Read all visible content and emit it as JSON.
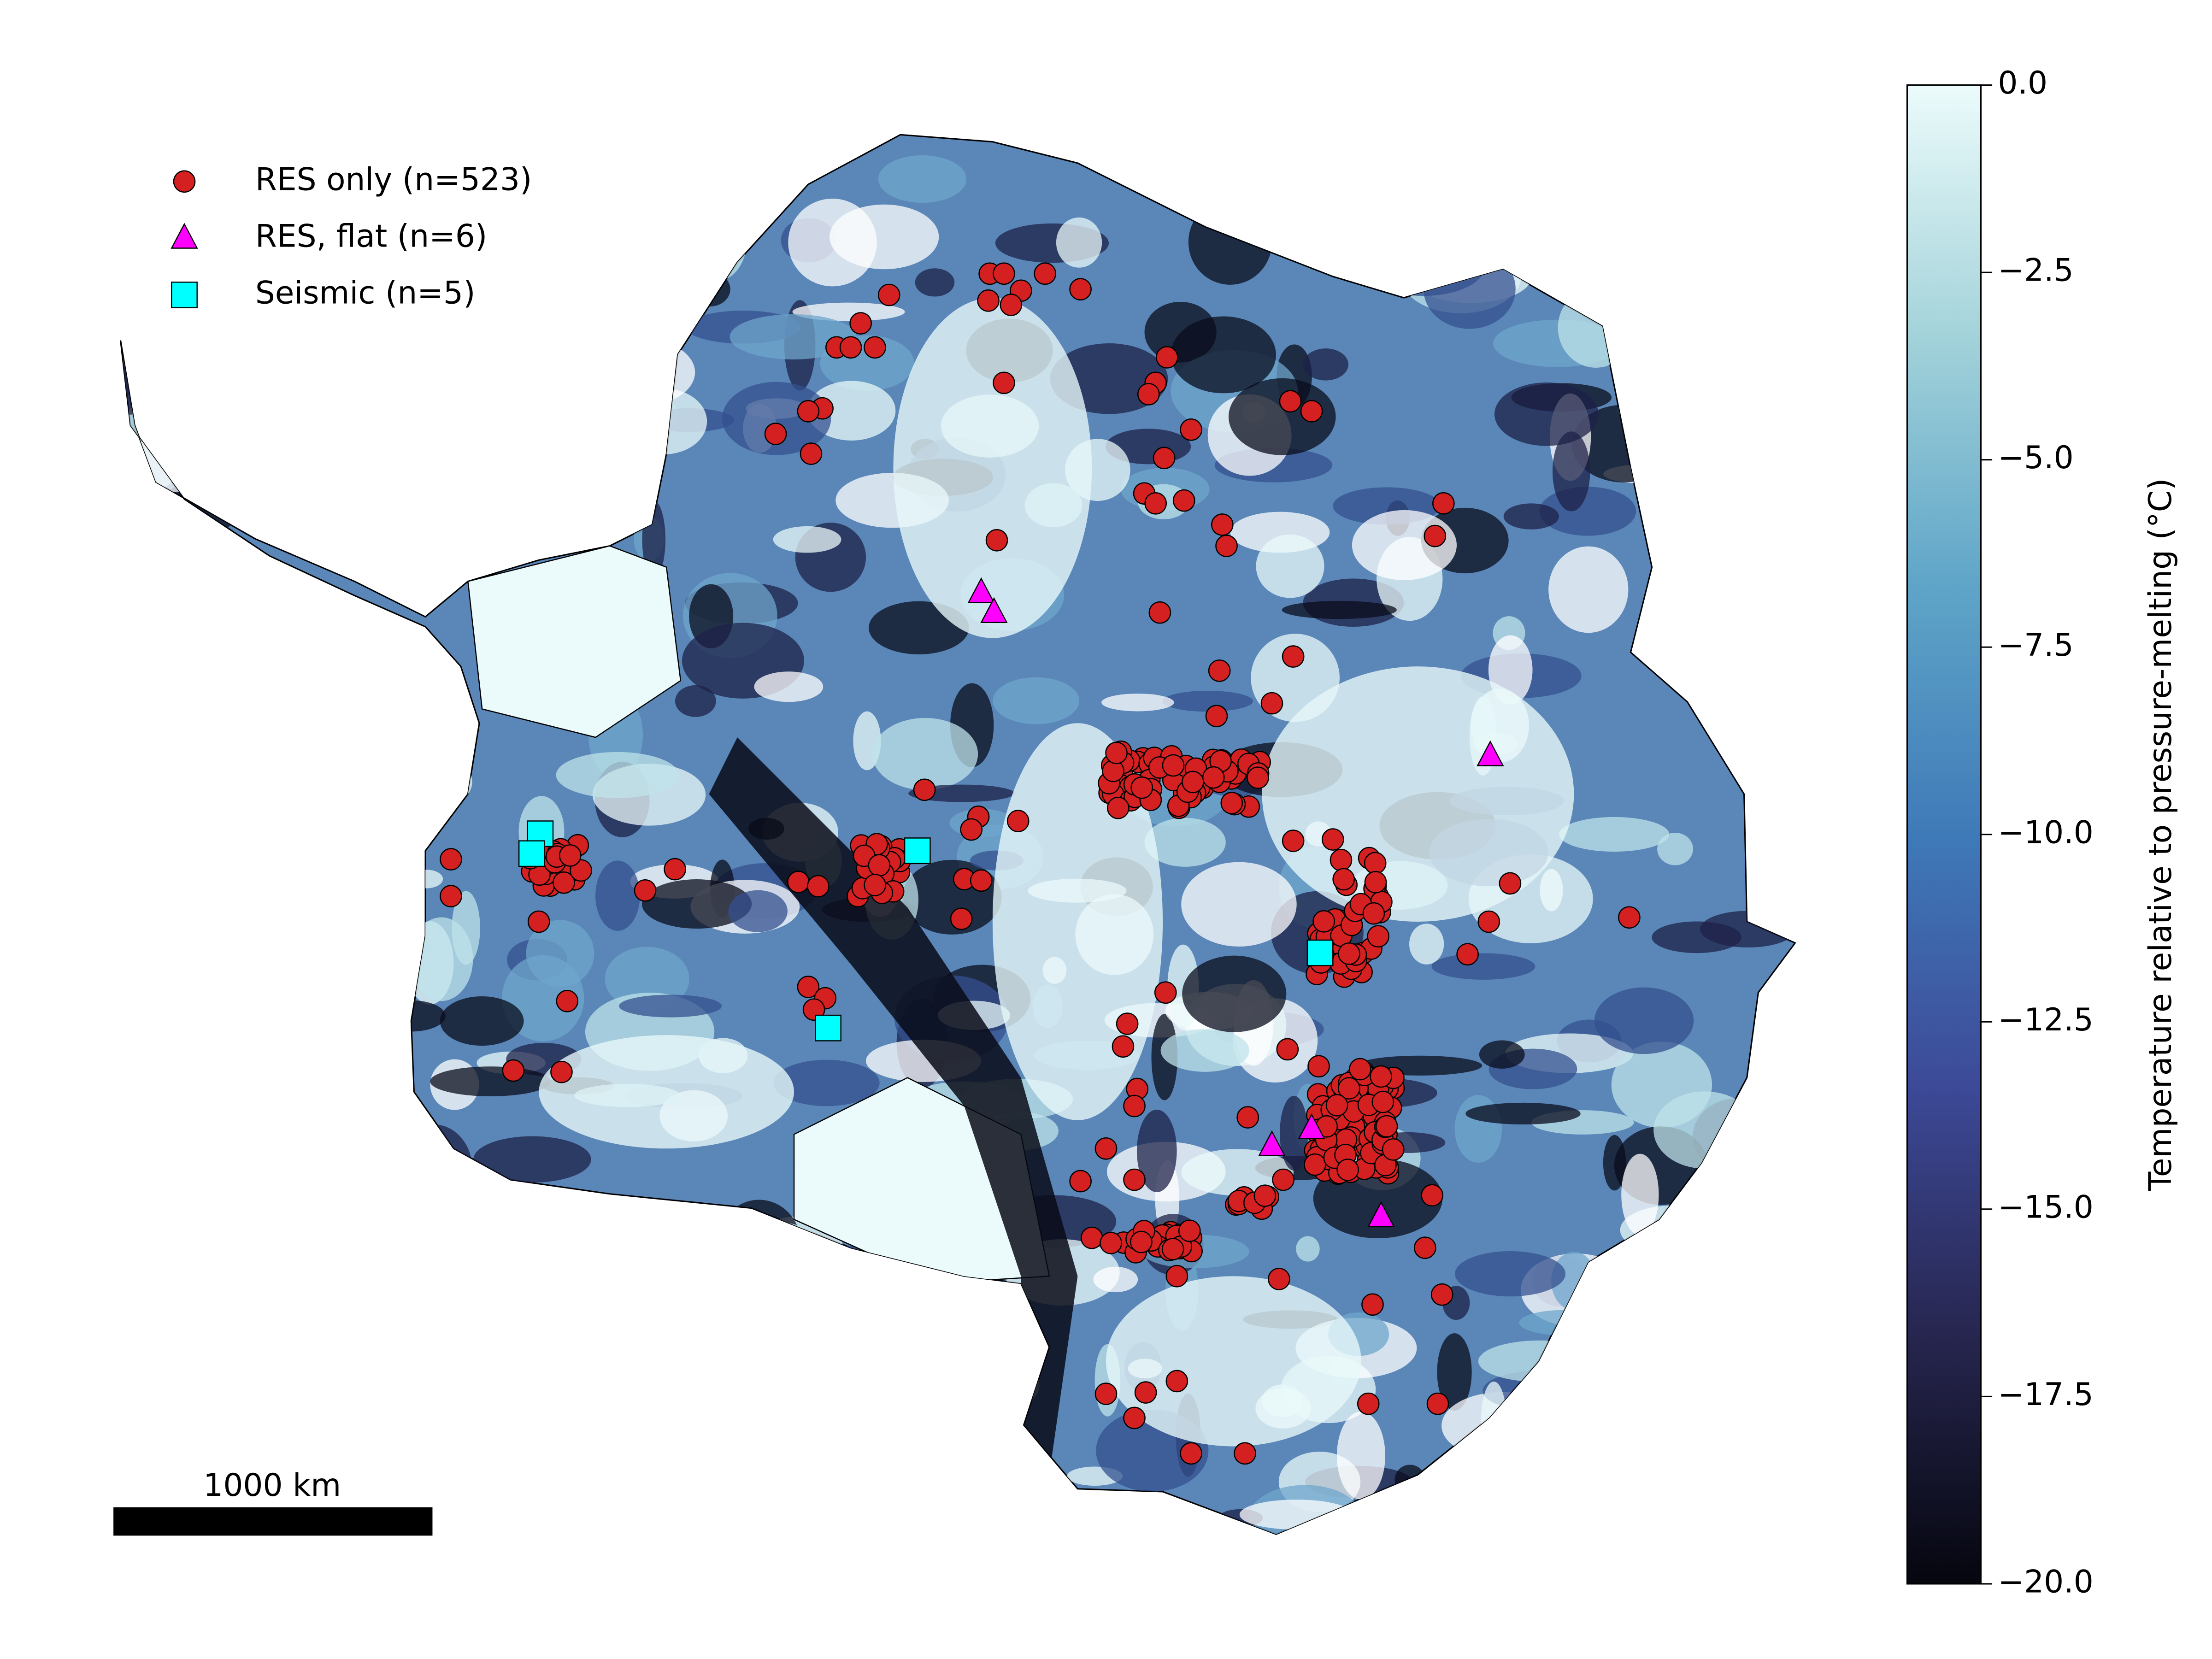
{
  "legend": {
    "items": [
      {
        "label": "RES only (n=523)",
        "color": "#d42020",
        "marker": "circle"
      },
      {
        "label": "RES, flat (n=6)",
        "color": "#ff00ff",
        "marker": "triangle"
      },
      {
        "label": "Seismic (n=5)",
        "color": "#00ffff",
        "marker": "square"
      }
    ]
  },
  "colorbar": {
    "type": "colorbar",
    "label": "Temperature relative to pressure-melting (°C)",
    "ylim": [
      -20,
      0
    ],
    "yticks": [
      {
        "value": 0,
        "label": "0.0"
      },
      {
        "value": -2.5,
        "label": "−2.5"
      },
      {
        "value": -5,
        "label": "−5.0"
      },
      {
        "value": -7.5,
        "label": "−7.5"
      },
      {
        "value": -10,
        "label": "−10.0"
      },
      {
        "value": -12.5,
        "label": "−12.5"
      },
      {
        "value": -15,
        "label": "−15.0"
      },
      {
        "value": -17.5,
        "label": "−17.5"
      },
      {
        "value": -20,
        "label": "−20.0"
      }
    ],
    "colors": [
      "#05060e",
      "#272650",
      "#3d4a98",
      "#3f7ab8",
      "#5fa5c8",
      "#a3d3da",
      "#ecfbfb"
    ]
  },
  "scale_bar": {
    "label": "1000 km"
  }
}
